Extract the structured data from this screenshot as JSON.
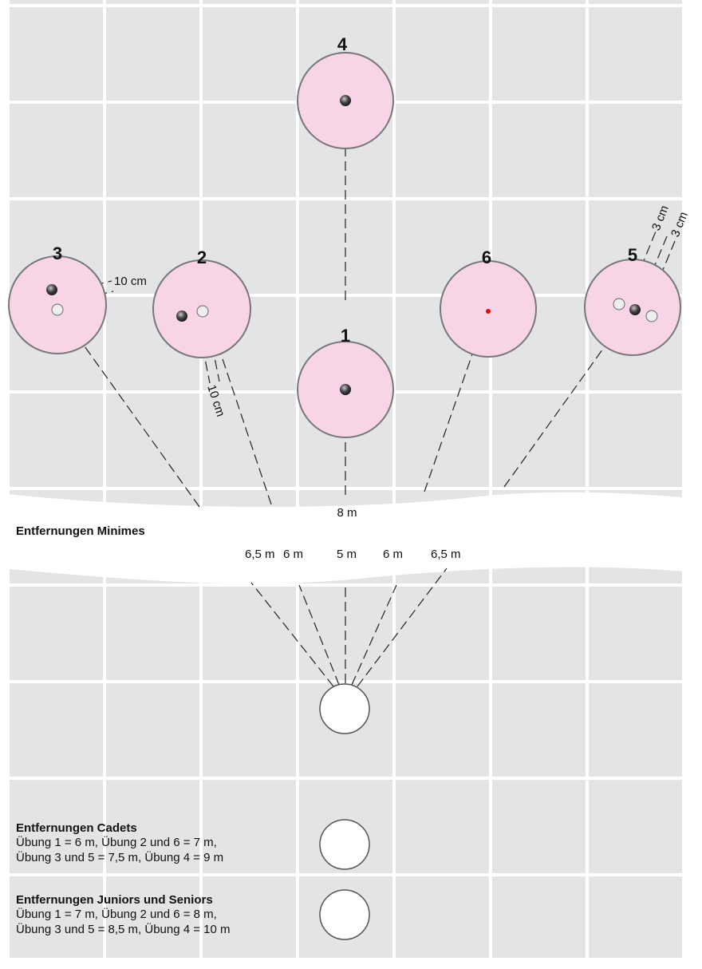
{
  "targets": [
    {
      "label": "1"
    },
    {
      "label": "2"
    },
    {
      "label": "3"
    },
    {
      "label": "4"
    },
    {
      "label": "5"
    },
    {
      "label": "6"
    }
  ],
  "annotations": {
    "offset_3": "10 cm",
    "offset_2": "10 cm",
    "offset_5a": "3 cm",
    "offset_5b": "3 cm",
    "distance_4": "8 m"
  },
  "minimes": {
    "title": "Entfernungen  Minimes",
    "distances": [
      "6,5 m",
      "6 m",
      "5 m",
      "6 m",
      "6,5 m"
    ]
  },
  "cadets": {
    "title": "Entfernungen  Cadets",
    "lines": [
      "Übung 1 = 6 m, Übung 2 und 6 = 7 m,",
      "Übung 3 und 5 = 7,5 m, Übung 4 = 9 m"
    ]
  },
  "juniors": {
    "title": "Entfernungen  Juniors und Seniors",
    "lines": [
      "Übung 1 = 7 m, Übung 2 und 6 = 8 m,",
      "Übung 3 und 5 = 8,5 m, Übung 4 = 10 m"
    ]
  }
}
